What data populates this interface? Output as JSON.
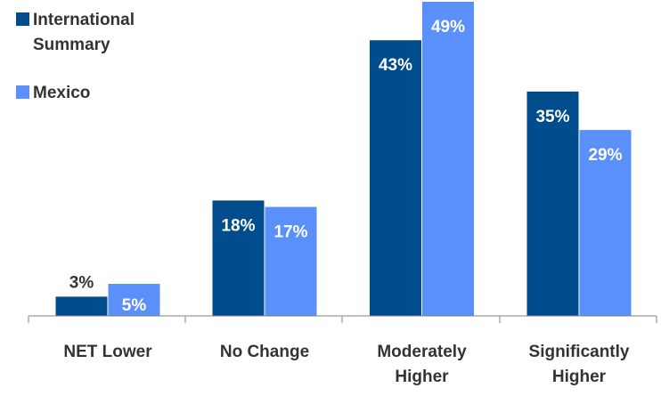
{
  "chart_data": {
    "type": "bar",
    "categories": [
      [
        "NET Lower"
      ],
      [
        "No Change"
      ],
      [
        "Moderately",
        "Higher"
      ],
      [
        "Significantly",
        "Higher"
      ]
    ],
    "series": [
      {
        "name": [
          "International",
          "Summary"
        ],
        "color": "#004C8C",
        "values": [
          3,
          18,
          43,
          35
        ],
        "labels": [
          "3%",
          "18%",
          "43%",
          "35%"
        ]
      },
      {
        "name": [
          "Mexico"
        ],
        "color": "#5B8FF9",
        "values": [
          5,
          17,
          49,
          29
        ],
        "labels": [
          "5%",
          "17%",
          "49%",
          "29%"
        ]
      }
    ],
    "ylim": [
      0,
      49
    ],
    "value_suffix": "%",
    "legend_position": "top-left",
    "grid": false,
    "colors": {
      "axis": "#808080",
      "label_inside": "#ffffff",
      "label_outside": "#333333",
      "text": "#333333"
    }
  }
}
